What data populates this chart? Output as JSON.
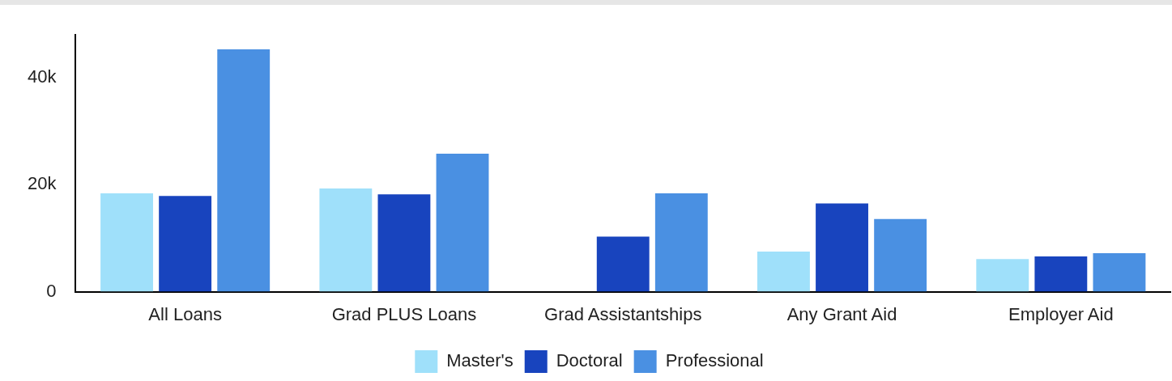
{
  "chart_data": {
    "type": "bar",
    "categories": [
      "All Loans",
      "Grad PLUS Loans",
      "Grad Assistantships",
      "Any Grant Aid",
      "Employer Aid"
    ],
    "series": [
      {
        "name": "Master's",
        "color": "#9fe0fa",
        "values": [
          18400,
          19300,
          null,
          7500,
          6100
        ]
      },
      {
        "name": "Doctoral",
        "color": "#1844be",
        "values": [
          17900,
          18200,
          10300,
          16500,
          6600
        ]
      },
      {
        "name": "Professional",
        "color": "#4a90e2",
        "values": [
          45300,
          25800,
          18400,
          13600,
          7200
        ]
      }
    ],
    "ylim": [
      0,
      48000
    ],
    "yticks": [
      0,
      {
        "value": 20000,
        "label": "20k"
      },
      {
        "value": 40000,
        "label": "40k"
      }
    ],
    "grid": false,
    "legend": "bottom"
  }
}
